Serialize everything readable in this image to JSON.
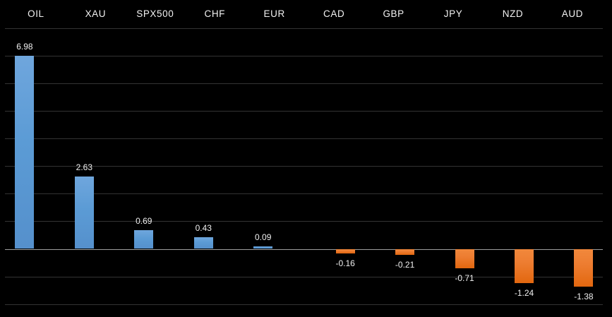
{
  "chart_data": {
    "type": "bar",
    "title": "",
    "xlabel": "",
    "ylabel": "",
    "categories": [
      "OIL",
      "XAU",
      "SPX500",
      "CHF",
      "EUR",
      "CAD",
      "GBP",
      "JPY",
      "NZD",
      "AUD"
    ],
    "values": [
      6.98,
      2.63,
      0.69,
      0.43,
      0.09,
      -0.16,
      -0.21,
      -0.71,
      -1.24,
      -1.38
    ],
    "value_labels": [
      "6.98",
      "2.63",
      "0.69",
      "0.43",
      "0.09",
      "-0.16",
      "-0.21",
      "-0.71",
      "-1.24",
      "-1.38"
    ],
    "ylim": [
      -2.5,
      8.3
    ],
    "gridlines": {
      "min": -2,
      "max": 8,
      "step": 1,
      "visible": true
    },
    "axis_tick_labels_visible": false,
    "legend_position": "none",
    "category_axis_position": "top",
    "colors": {
      "background": "#000000",
      "positive_bar": "#5b9bd5",
      "negative_bar": "#ed7d31",
      "gridline": "#333333",
      "zero_line": "#9d9d9d",
      "label_text": "#f2f2f2"
    }
  }
}
